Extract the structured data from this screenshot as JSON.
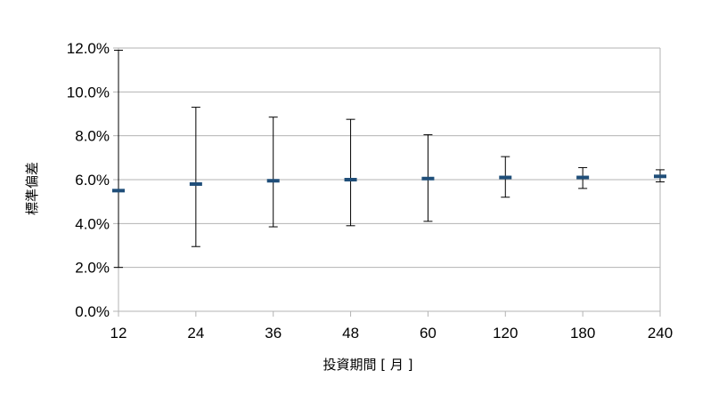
{
  "chart_data": {
    "type": "errorbar",
    "xlabel": "投資期間 [ 月 ]",
    "ylabel": "標準偏差",
    "categories": [
      "12",
      "24",
      "36",
      "48",
      "60",
      "120",
      "180",
      "240"
    ],
    "series": [
      {
        "mean": [
          5.5,
          5.8,
          5.95,
          6.0,
          6.05,
          6.1,
          6.1,
          6.15
        ],
        "high": [
          11.9,
          9.3,
          8.85,
          8.75,
          8.05,
          7.05,
          6.55,
          6.45
        ],
        "low": [
          2.0,
          2.95,
          3.85,
          3.9,
          4.1,
          5.2,
          5.6,
          5.9
        ]
      }
    ],
    "ylim": [
      0,
      12
    ],
    "yticks": [
      "0.0%",
      "2.0%",
      "4.0%",
      "6.0%",
      "8.0%",
      "10.0%",
      "12.0%"
    ],
    "grid": true,
    "colors": {
      "mean_marker": "#1f4e79",
      "error_bar": "#000000",
      "grid": "#b3b3b3"
    }
  }
}
